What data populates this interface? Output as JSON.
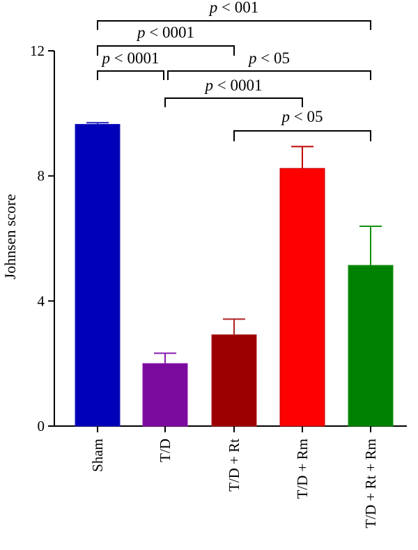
{
  "chart_data": {
    "type": "bar",
    "ylabel": "Johnsen score",
    "ylim": [
      0,
      12
    ],
    "yticks": [
      0,
      4,
      8,
      12
    ],
    "categories": [
      "Sham",
      "T/D",
      "T/D + Rt",
      "T/D + Rm",
      "T/D + Rt + Rm"
    ],
    "values": [
      9.65,
      2.0,
      2.92,
      8.24,
      5.14
    ],
    "errors": [
      0.05,
      0.33,
      0.5,
      0.7,
      1.25
    ],
    "colors": [
      "#0000b8",
      "#7a0a9e",
      "#9c0000",
      "#ff0000",
      "#008000"
    ],
    "error_colors": [
      "#2020c0",
      "#8a1ab0",
      "#b02020",
      "#c00000",
      "#109010"
    ],
    "significance": [
      {
        "from": 0,
        "to": 4,
        "p_symbol": "p",
        "p_text": " < 001"
      },
      {
        "from": 0,
        "to": 2,
        "p_symbol": "p",
        "p_text": " < 0001"
      },
      {
        "from": 0,
        "to": 1,
        "p_symbol": "p",
        "p_text": " < 0001"
      },
      {
        "from": 1,
        "to": 4,
        "p_symbol": "p",
        "p_text": " < 05"
      },
      {
        "from": 1,
        "to": 3,
        "p_symbol": "p",
        "p_text": " < 0001"
      },
      {
        "from": 2,
        "to": 4,
        "p_symbol": "p",
        "p_text": " < 05"
      }
    ]
  }
}
